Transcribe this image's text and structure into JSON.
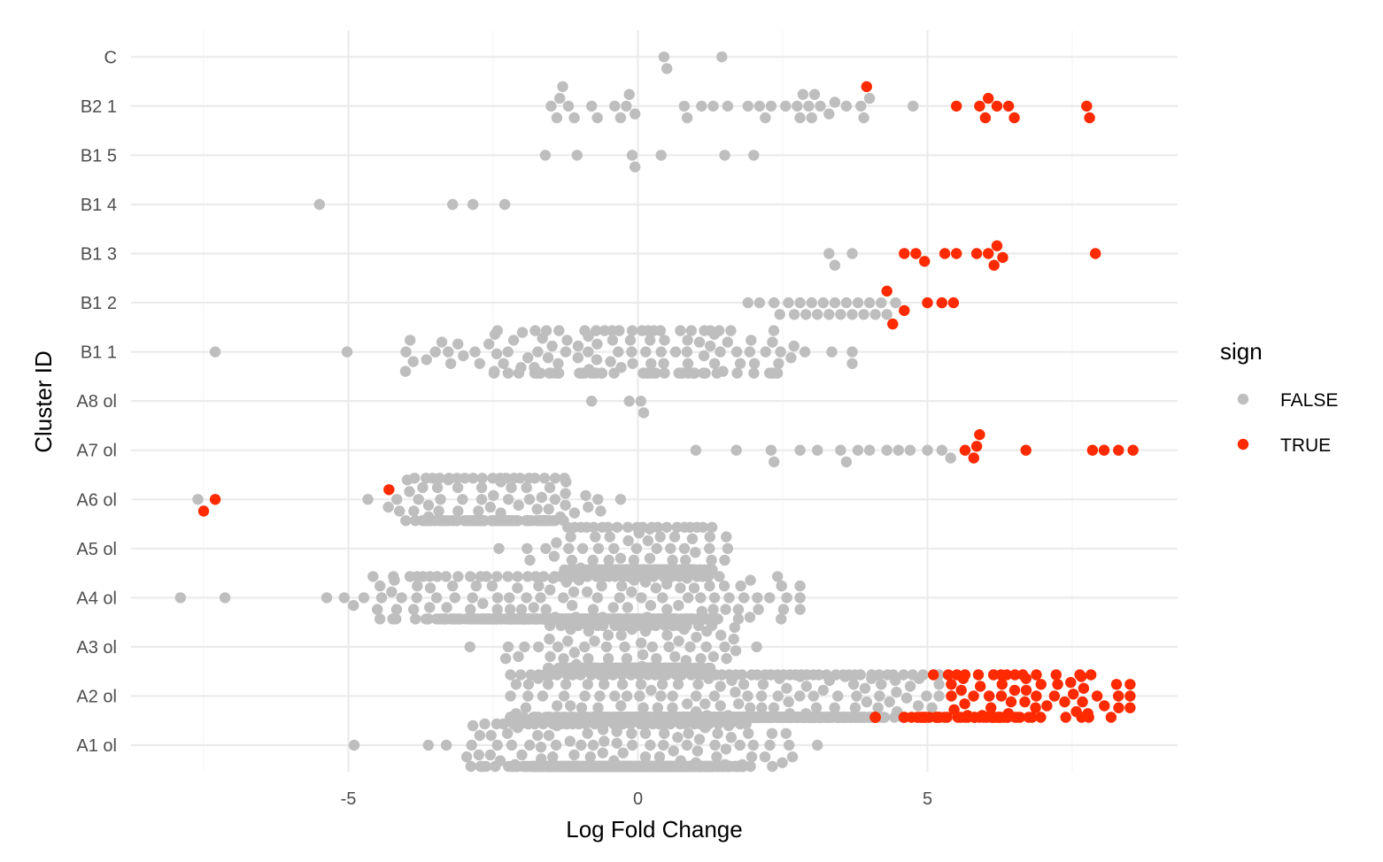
{
  "chart_data": {
    "type": "scatter",
    "subtype": "beeswarm",
    "xlabel": "Log Fold Change",
    "ylabel": "Cluster ID",
    "xlim": [
      -8.8,
      9.3
    ],
    "xticks": [
      -5,
      0,
      5
    ],
    "xtick_labels": [
      "-5",
      "0",
      "5"
    ],
    "grid": true,
    "categories": [
      "A1 ol",
      "A2 ol",
      "A3 ol",
      "A4 ol",
      "A5 ol",
      "A6 ol",
      "A7 ol",
      "A8 ol",
      "B1 1",
      "B1 2",
      "B1 3",
      "B1 4",
      "B1 5",
      "B2 1",
      "C"
    ],
    "legend": {
      "title": "sign",
      "position": "right",
      "entries": [
        {
          "label": "FALSE",
          "color": "#bebebe"
        },
        {
          "label": "TRUE",
          "color": "#ff2a00"
        }
      ]
    },
    "series": [
      {
        "name": "FALSE",
        "color": "#bebebe",
        "points": [
          {
            "cluster": "C",
            "x": 0.45
          },
          {
            "cluster": "C",
            "x": 0.5
          },
          {
            "cluster": "C",
            "x": 1.45
          },
          {
            "cluster": "B2 1",
            "x": -1.5
          },
          {
            "cluster": "B2 1",
            "x": -1.4
          },
          {
            "cluster": "B2 1",
            "x": -1.35
          },
          {
            "cluster": "B2 1",
            "x": -1.3
          },
          {
            "cluster": "B2 1",
            "x": -1.2
          },
          {
            "cluster": "B2 1",
            "x": -1.1
          },
          {
            "cluster": "B2 1",
            "x": -0.8
          },
          {
            "cluster": "B2 1",
            "x": -0.7
          },
          {
            "cluster": "B2 1",
            "x": -0.4
          },
          {
            "cluster": "B2 1",
            "x": -0.3
          },
          {
            "cluster": "B2 1",
            "x": -0.2
          },
          {
            "cluster": "B2 1",
            "x": -0.15
          },
          {
            "cluster": "B2 1",
            "x": -0.05
          },
          {
            "cluster": "B2 1",
            "x": 0.8
          },
          {
            "cluster": "B2 1",
            "x": 0.85
          },
          {
            "cluster": "B2 1",
            "x": 1.1
          },
          {
            "cluster": "B2 1",
            "x": 1.3
          },
          {
            "cluster": "B2 1",
            "x": 1.55
          },
          {
            "cluster": "B2 1",
            "x": 1.9
          },
          {
            "cluster": "B2 1",
            "x": 2.1
          },
          {
            "cluster": "B2 1",
            "x": 2.2
          },
          {
            "cluster": "B2 1",
            "x": 2.3
          },
          {
            "cluster": "B2 1",
            "x": 2.55
          },
          {
            "cluster": "B2 1",
            "x": 2.75
          },
          {
            "cluster": "B2 1",
            "x": 2.8
          },
          {
            "cluster": "B2 1",
            "x": 2.85
          },
          {
            "cluster": "B2 1",
            "x": 2.95
          },
          {
            "cluster": "B2 1",
            "x": 3.0
          },
          {
            "cluster": "B2 1",
            "x": 3.05
          },
          {
            "cluster": "B2 1",
            "x": 3.15
          },
          {
            "cluster": "B2 1",
            "x": 3.3
          },
          {
            "cluster": "B2 1",
            "x": 3.4
          },
          {
            "cluster": "B2 1",
            "x": 3.6
          },
          {
            "cluster": "B2 1",
            "x": 3.85
          },
          {
            "cluster": "B2 1",
            "x": 3.9
          },
          {
            "cluster": "B2 1",
            "x": 4.0
          },
          {
            "cluster": "B2 1",
            "x": 4.75
          },
          {
            "cluster": "B1 5",
            "x": -1.6
          },
          {
            "cluster": "B1 5",
            "x": -1.05
          },
          {
            "cluster": "B1 5",
            "x": -0.1
          },
          {
            "cluster": "B1 5",
            "x": -0.05
          },
          {
            "cluster": "B1 5",
            "x": 0.4
          },
          {
            "cluster": "B1 5",
            "x": 1.5
          },
          {
            "cluster": "B1 5",
            "x": 2.0
          },
          {
            "cluster": "B1 4",
            "x": -5.5
          },
          {
            "cluster": "B1 4",
            "x": -3.2
          },
          {
            "cluster": "B1 4",
            "x": -2.85
          },
          {
            "cluster": "B1 4",
            "x": -2.3
          },
          {
            "cluster": "B1 3",
            "x": 3.3
          },
          {
            "cluster": "B1 3",
            "x": 3.4
          },
          {
            "cluster": "B1 3",
            "x": 3.7
          },
          {
            "cluster": "B1 2",
            "x": 1.9
          },
          {
            "cluster": "B1 2",
            "x": 2.1
          },
          {
            "cluster": "B1 2",
            "x": 2.35
          },
          {
            "cluster": "B1 2",
            "x": 2.45
          },
          {
            "cluster": "B1 2",
            "x": 2.6
          },
          {
            "cluster": "B1 2",
            "x": 2.7
          },
          {
            "cluster": "B1 2",
            "x": 2.8
          },
          {
            "cluster": "B1 2",
            "x": 2.9
          },
          {
            "cluster": "B1 2",
            "x": 3.0
          },
          {
            "cluster": "B1 2",
            "x": 3.1
          },
          {
            "cluster": "B1 2",
            "x": 3.2
          },
          {
            "cluster": "B1 2",
            "x": 3.3
          },
          {
            "cluster": "B1 2",
            "x": 3.4
          },
          {
            "cluster": "B1 2",
            "x": 3.5
          },
          {
            "cluster": "B1 2",
            "x": 3.6
          },
          {
            "cluster": "B1 2",
            "x": 3.7
          },
          {
            "cluster": "B1 2",
            "x": 3.8
          },
          {
            "cluster": "B1 2",
            "x": 3.9
          },
          {
            "cluster": "B1 2",
            "x": 4.0
          },
          {
            "cluster": "B1 2",
            "x": 4.1
          },
          {
            "cluster": "B1 2",
            "x": 4.2
          },
          {
            "cluster": "B1 2",
            "x": 4.3
          },
          {
            "cluster": "B1 2",
            "x": 4.45
          },
          {
            "cluster": "A8 ol",
            "x": -0.8
          },
          {
            "cluster": "A8 ol",
            "x": -0.15
          },
          {
            "cluster": "A8 ol",
            "x": 0.05
          },
          {
            "cluster": "A8 ol",
            "x": 0.1
          },
          {
            "cluster": "A7 ol",
            "x": 1.0
          },
          {
            "cluster": "A7 ol",
            "x": 1.7
          },
          {
            "cluster": "A7 ol",
            "x": 2.3
          },
          {
            "cluster": "A7 ol",
            "x": 2.35
          },
          {
            "cluster": "A7 ol",
            "x": 2.8
          },
          {
            "cluster": "A7 ol",
            "x": 3.1
          },
          {
            "cluster": "A7 ol",
            "x": 3.5
          },
          {
            "cluster": "A7 ol",
            "x": 3.6
          },
          {
            "cluster": "A7 ol",
            "x": 3.8
          },
          {
            "cluster": "A7 ol",
            "x": 4.0
          },
          {
            "cluster": "A7 ol",
            "x": 4.3
          },
          {
            "cluster": "A7 ol",
            "x": 4.5
          },
          {
            "cluster": "A7 ol",
            "x": 4.7
          },
          {
            "cluster": "A7 ol",
            "x": 5.0
          },
          {
            "cluster": "A7 ol",
            "x": 5.25
          },
          {
            "cluster": "A7 ol",
            "x": 5.4
          }
        ]
      },
      {
        "name": "TRUE",
        "color": "#ff2a00",
        "points": [
          {
            "cluster": "B2 1",
            "x": 3.95
          },
          {
            "cluster": "B2 1",
            "x": 5.5
          },
          {
            "cluster": "B2 1",
            "x": 5.9
          },
          {
            "cluster": "B2 1",
            "x": 6.0
          },
          {
            "cluster": "B2 1",
            "x": 6.05
          },
          {
            "cluster": "B2 1",
            "x": 6.2
          },
          {
            "cluster": "B2 1",
            "x": 6.4
          },
          {
            "cluster": "B2 1",
            "x": 6.5
          },
          {
            "cluster": "B2 1",
            "x": 7.75
          },
          {
            "cluster": "B2 1",
            "x": 7.8
          },
          {
            "cluster": "B1 3",
            "x": 4.6
          },
          {
            "cluster": "B1 3",
            "x": 4.8
          },
          {
            "cluster": "B1 3",
            "x": 4.95
          },
          {
            "cluster": "B1 3",
            "x": 5.3
          },
          {
            "cluster": "B1 3",
            "x": 5.5
          },
          {
            "cluster": "B1 3",
            "x": 5.85
          },
          {
            "cluster": "B1 3",
            "x": 6.05
          },
          {
            "cluster": "B1 3",
            "x": 6.15
          },
          {
            "cluster": "B1 3",
            "x": 6.2
          },
          {
            "cluster": "B1 3",
            "x": 6.3
          },
          {
            "cluster": "B1 3",
            "x": 7.9
          },
          {
            "cluster": "B1 2",
            "x": 4.3
          },
          {
            "cluster": "B1 2",
            "x": 4.4
          },
          {
            "cluster": "B1 2",
            "x": 4.6
          },
          {
            "cluster": "B1 2",
            "x": 5.0
          },
          {
            "cluster": "B1 2",
            "x": 5.25
          },
          {
            "cluster": "B1 2",
            "x": 5.45
          },
          {
            "cluster": "A7 ol",
            "x": 5.65
          },
          {
            "cluster": "A7 ol",
            "x": 5.8
          },
          {
            "cluster": "A7 ol",
            "x": 5.85
          },
          {
            "cluster": "A7 ol",
            "x": 5.9
          },
          {
            "cluster": "A7 ol",
            "x": 6.7
          },
          {
            "cluster": "A7 ol",
            "x": 7.85
          },
          {
            "cluster": "A7 ol",
            "x": 8.05
          },
          {
            "cluster": "A7 ol",
            "x": 8.3
          },
          {
            "cluster": "A7 ol",
            "x": 8.55
          },
          {
            "cluster": "A6 ol",
            "x": -7.5
          },
          {
            "cluster": "A6 ol",
            "x": -7.3
          },
          {
            "cluster": "A6 ol",
            "x": -4.3
          }
        ]
      }
    ],
    "distributions": [
      {
        "cluster": "B1 1",
        "sign": "FALSE",
        "center": -0.3,
        "spread": 1.8,
        "n": 150,
        "min": -7.3,
        "max": 3.7
      },
      {
        "cluster": "A6 ol",
        "sign": "FALSE",
        "center": -2.6,
        "spread": 0.9,
        "n": 160,
        "min": -7.6,
        "max": -0.3
      },
      {
        "cluster": "A5 ol",
        "sign": "FALSE",
        "center": 0.0,
        "spread": 0.55,
        "n": 330,
        "min": -2.4,
        "max": 1.55
      },
      {
        "cluster": "A4 ol",
        "sign": "FALSE",
        "center": -1.1,
        "spread": 1.5,
        "n": 600,
        "min": -7.9,
        "max": 2.8
      },
      {
        "cluster": "A3 ol",
        "sign": "FALSE",
        "center": -0.1,
        "spread": 0.75,
        "n": 320,
        "min": -2.9,
        "max": 2.05
      },
      {
        "cluster": "A2 ol",
        "sign": "FALSE",
        "center": 1.2,
        "spread": 1.7,
        "n": 900,
        "min": -2.2,
        "max": 5.2
      },
      {
        "cluster": "A2 ol",
        "sign": "TRUE",
        "center": 6.3,
        "spread": 1.2,
        "n": 110,
        "min": 4.1,
        "max": 8.5
      },
      {
        "cluster": "A1 ol",
        "sign": "FALSE",
        "center": -0.3,
        "spread": 1.0,
        "n": 800,
        "min": -4.9,
        "max": 3.1
      }
    ]
  }
}
